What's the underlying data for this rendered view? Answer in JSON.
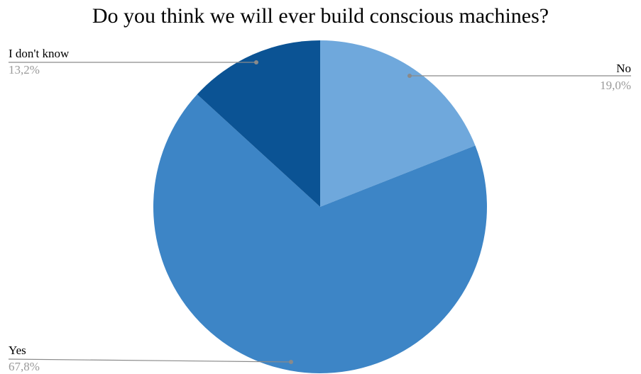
{
  "chart_data": {
    "type": "pie",
    "title": "Do you think we will ever build conscious machines?",
    "categories": [
      "No",
      "Yes",
      "I don't know"
    ],
    "values": [
      19.0,
      67.8,
      13.2
    ],
    "value_labels": [
      "19,0%",
      "67,8%",
      "13,2%"
    ],
    "colors": [
      "#6fa8dc",
      "#3d85c6",
      "#0b5394"
    ],
    "start_angle_deg": 0,
    "direction": "clockwise",
    "legend": "none",
    "label_style": "callout-lines"
  }
}
